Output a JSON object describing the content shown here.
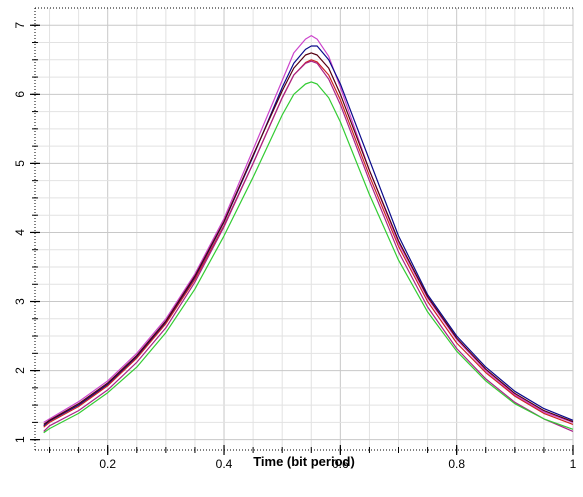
{
  "chart_data": {
    "type": "line",
    "title": "",
    "xlabel": "Time (bit period)",
    "ylabel": "",
    "xlim": [
      0.075,
      1.0
    ],
    "ylim": [
      0.85,
      7.25
    ],
    "x_ticks": [
      0.2,
      0.4,
      0.6,
      0.8,
      1
    ],
    "x_tick_labels": [
      "0.2",
      "0.4",
      "0.6",
      "0.8",
      "1"
    ],
    "y_ticks": [
      1,
      2,
      3,
      4,
      5,
      6,
      7
    ],
    "y_tick_labels": [
      "1",
      "2",
      "3",
      "4",
      "5",
      "6",
      "7"
    ],
    "grid": true,
    "legend": "none",
    "x": [
      0.09,
      0.1,
      0.15,
      0.2,
      0.25,
      0.3,
      0.35,
      0.4,
      0.45,
      0.5,
      0.52,
      0.54,
      0.55,
      0.56,
      0.58,
      0.6,
      0.65,
      0.7,
      0.75,
      0.8,
      0.85,
      0.9,
      0.95,
      1.0
    ],
    "series": [
      {
        "color": "#cc44cc",
        "values": [
          1.25,
          1.3,
          1.55,
          1.85,
          2.25,
          2.75,
          3.4,
          4.2,
          5.2,
          6.2,
          6.6,
          6.8,
          6.85,
          6.8,
          6.55,
          6.1,
          4.9,
          3.85,
          3.05,
          2.45,
          2.0,
          1.65,
          1.4,
          1.25
        ]
      },
      {
        "color": "#0a0a8a",
        "values": [
          1.2,
          1.27,
          1.5,
          1.8,
          2.2,
          2.7,
          3.35,
          4.15,
          5.1,
          6.1,
          6.45,
          6.65,
          6.7,
          6.7,
          6.5,
          6.15,
          5.05,
          3.95,
          3.1,
          2.5,
          2.05,
          1.7,
          1.45,
          1.28
        ]
      },
      {
        "color": "#550011",
        "values": [
          1.22,
          1.28,
          1.52,
          1.82,
          2.22,
          2.72,
          3.37,
          4.16,
          5.12,
          6.05,
          6.38,
          6.57,
          6.6,
          6.57,
          6.38,
          6.0,
          4.9,
          3.88,
          3.07,
          2.47,
          2.02,
          1.67,
          1.42,
          1.26
        ]
      },
      {
        "color": "#cc2222",
        "values": [
          1.18,
          1.25,
          1.48,
          1.78,
          2.18,
          2.68,
          3.32,
          4.1,
          5.0,
          5.95,
          6.28,
          6.46,
          6.5,
          6.47,
          6.28,
          5.92,
          4.82,
          3.8,
          3.0,
          2.4,
          1.97,
          1.63,
          1.38,
          1.22
        ]
      },
      {
        "color": "#aa2288",
        "values": [
          1.12,
          1.2,
          1.42,
          1.72,
          2.12,
          2.62,
          3.28,
          4.08,
          5.0,
          5.95,
          6.28,
          6.45,
          6.48,
          6.45,
          6.22,
          5.85,
          4.75,
          3.72,
          2.92,
          2.32,
          1.88,
          1.54,
          1.3,
          1.12
        ]
      },
      {
        "color": "#33cc33",
        "values": [
          1.1,
          1.16,
          1.38,
          1.68,
          2.05,
          2.55,
          3.18,
          3.95,
          4.8,
          5.7,
          6.0,
          6.15,
          6.18,
          6.15,
          5.95,
          5.6,
          4.55,
          3.6,
          2.85,
          2.28,
          1.85,
          1.52,
          1.3,
          1.15
        ]
      }
    ]
  }
}
